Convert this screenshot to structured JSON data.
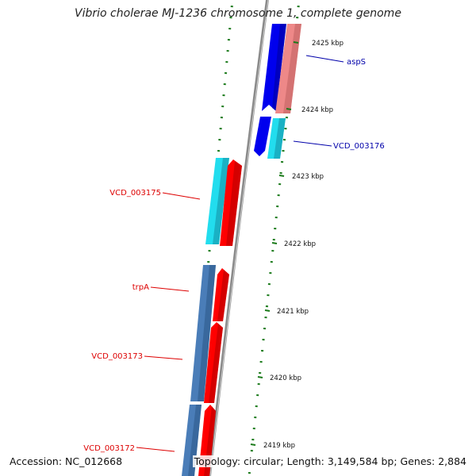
{
  "title": "Vibrio cholerae MJ-1236 chromosome 1, complete genome",
  "footer": {
    "accession": "Accession: NC_012668",
    "summary": "Topology: circular; Length: 3,149,584 bp; Genes: 2,884"
  },
  "ticks": [
    "2425 kbp",
    "2424 kbp",
    "2423 kbp",
    "2422 kbp",
    "2421 kbp",
    "2420 kbp",
    "2419 kbp"
  ],
  "gene_labels": [
    {
      "name": "aspS",
      "strand": "reverse"
    },
    {
      "name": "VCD_003176",
      "strand": "reverse"
    },
    {
      "name": "VCD_003175",
      "strand": "forward"
    },
    {
      "name": "trpA",
      "strand": "forward"
    },
    {
      "name": "VCD_003173",
      "strand": "forward"
    },
    {
      "name": "VCD_003172",
      "strand": "forward"
    }
  ],
  "colors": {
    "forward_label": "#dd0000",
    "reverse_label": "#0000aa",
    "backbone": "#8a8a8a",
    "tick": "#1a7a1a",
    "forward_gene": "#ff0000",
    "reverse_gene": "#0000ee",
    "pink_gene": "#ee8888",
    "cyan_gene": "#22ddee",
    "steelblue_gene": "#4a7db8"
  }
}
